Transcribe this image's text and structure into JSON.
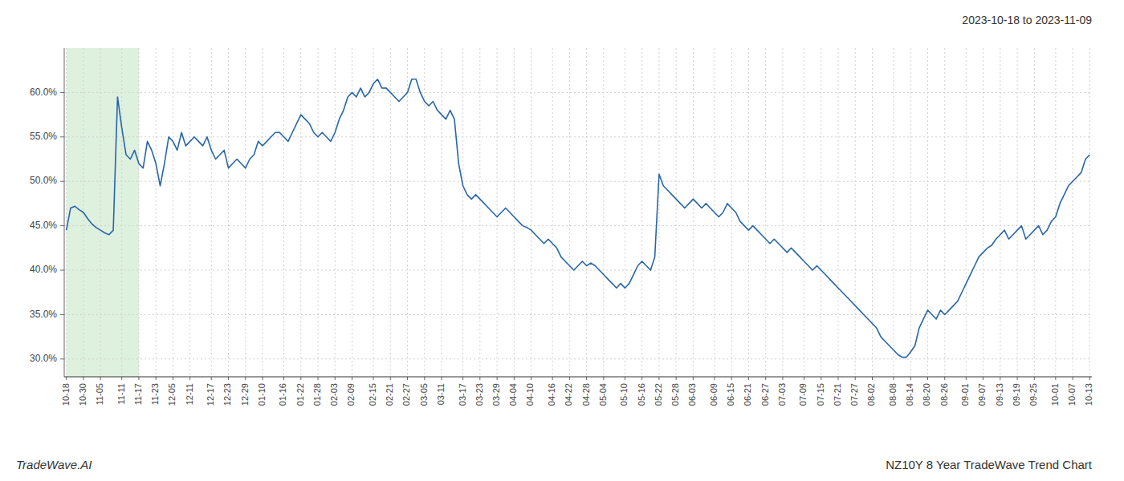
{
  "chart_data": {
    "type": "line",
    "title": "2023-10-18 to 2023-11-09",
    "subtitle": "NZ10Y 8 Year TradeWave Trend Chart",
    "annotations": [
      "TradeWave.AI"
    ],
    "color": "#2866a8",
    "grid": true,
    "highlight": {
      "from": "10-18",
      "to": "11-17",
      "color": "#c8e6c8"
    },
    "ylim": [
      28.0,
      65.0
    ],
    "yticks": [
      {
        "value": 30.0,
        "label": "30.0%"
      },
      {
        "value": 35.0,
        "label": "35.0%"
      },
      {
        "value": 40.0,
        "label": "40.0%"
      },
      {
        "value": 45.0,
        "label": "45.0%"
      },
      {
        "value": 50.0,
        "label": "50.0%"
      },
      {
        "value": 55.0,
        "label": "55.0%"
      },
      {
        "value": 60.0,
        "label": "60.0%"
      }
    ],
    "categories": [
      "10-18",
      null,
      null,
      null,
      "10-30",
      null,
      null,
      null,
      "11-05",
      null,
      null,
      null,
      null,
      "11-11",
      null,
      null,
      null,
      "11-17",
      null,
      null,
      null,
      "11-23",
      null,
      null,
      null,
      "12-05",
      null,
      null,
      null,
      "12-11",
      null,
      null,
      null,
      null,
      "12-17",
      null,
      null,
      null,
      "12-23",
      null,
      null,
      null,
      "12-29",
      null,
      null,
      null,
      "01-10",
      null,
      null,
      null,
      null,
      "01-16",
      null,
      null,
      null,
      "01-22",
      null,
      null,
      null,
      "01-28",
      null,
      null,
      null,
      "02-03",
      null,
      null,
      null,
      "02-09",
      null,
      null,
      null,
      null,
      "02-15",
      null,
      null,
      null,
      "02-21",
      null,
      null,
      null,
      "02-27",
      null,
      null,
      null,
      "03-05",
      null,
      null,
      null,
      "03-11",
      null,
      null,
      null,
      null,
      "03-17",
      null,
      null,
      null,
      "03-23",
      null,
      null,
      null,
      "03-29",
      null,
      null,
      null,
      "04-04",
      null,
      null,
      null,
      "04-10",
      null,
      null,
      null,
      null,
      "04-16",
      null,
      null,
      null,
      "04-22",
      null,
      null,
      null,
      "04-28",
      null,
      null,
      null,
      "05-04",
      null,
      null,
      null,
      null,
      "05-10",
      null,
      null,
      null,
      "05-16",
      null,
      null,
      null,
      "05-22",
      null,
      null,
      null,
      "05-28",
      null,
      null,
      null,
      "06-03",
      null,
      null,
      null,
      null,
      "06-09",
      null,
      null,
      null,
      "06-15",
      null,
      null,
      null,
      "06-21",
      null,
      null,
      null,
      "06-27",
      null,
      null,
      null,
      "07-03",
      null,
      null,
      null,
      null,
      "07-09",
      null,
      null,
      null,
      "07-15",
      null,
      null,
      null,
      "07-21",
      null,
      null,
      null,
      "07-27",
      null,
      null,
      null,
      "08-02",
      null,
      null,
      null,
      null,
      "08-08",
      null,
      null,
      null,
      "08-14",
      null,
      null,
      null,
      "08-20",
      null,
      null,
      null,
      "08-26",
      null,
      null,
      null,
      null,
      "09-01",
      null,
      null,
      null,
      "09-07",
      null,
      null,
      null,
      "09-13",
      null,
      null,
      null,
      "09-19",
      null,
      null,
      null,
      "09-25",
      null,
      null,
      null,
      null,
      "10-01",
      null,
      null,
      null,
      "10-07",
      null,
      null,
      null,
      "10-13"
    ],
    "values": [
      44.5,
      47.0,
      47.2,
      46.8,
      46.5,
      45.8,
      45.2,
      44.8,
      44.5,
      44.2,
      44.0,
      44.5,
      59.5,
      56.0,
      53.0,
      52.5,
      53.5,
      52.0,
      51.5,
      54.5,
      53.5,
      52.0,
      49.5,
      52.0,
      55.0,
      54.5,
      53.5,
      55.5,
      54.0,
      54.5,
      55.0,
      54.5,
      54.0,
      55.0,
      53.5,
      52.5,
      53.0,
      53.5,
      51.5,
      52.0,
      52.5,
      52.0,
      51.5,
      52.5,
      53.0,
      54.5,
      54.0,
      54.5,
      55.0,
      55.5,
      55.5,
      55.0,
      54.5,
      55.5,
      56.5,
      57.5,
      57.0,
      56.5,
      55.5,
      55.0,
      55.5,
      55.0,
      54.5,
      55.5,
      57.0,
      58.0,
      59.5,
      60.0,
      59.5,
      60.5,
      59.5,
      60.0,
      61.0,
      61.5,
      60.5,
      60.5,
      60.0,
      59.5,
      59.0,
      59.5,
      60.0,
      61.5,
      61.5,
      60.0,
      59.0,
      58.5,
      59.0,
      58.0,
      57.5,
      57.0,
      58.0,
      57.0,
      52.0,
      49.5,
      48.5,
      48.0,
      48.5,
      48.0,
      47.5,
      47.0,
      46.5,
      46.0,
      46.5,
      47.0,
      46.5,
      46.0,
      45.5,
      45.0,
      44.8,
      44.5,
      44.0,
      43.5,
      43.0,
      43.5,
      43.0,
      42.5,
      41.5,
      41.0,
      40.5,
      40.0,
      40.5,
      41.0,
      40.5,
      40.8,
      40.5,
      40.0,
      39.5,
      39.0,
      38.5,
      38.0,
      38.5,
      38.0,
      38.5,
      39.5,
      40.5,
      41.0,
      40.5,
      40.0,
      41.5,
      50.8,
      49.5,
      49.0,
      48.5,
      48.0,
      47.5,
      47.0,
      47.5,
      48.0,
      47.5,
      47.0,
      47.5,
      47.0,
      46.5,
      46.0,
      46.5,
      47.5,
      47.0,
      46.5,
      45.5,
      45.0,
      44.5,
      45.0,
      44.5,
      44.0,
      43.5,
      43.0,
      43.5,
      43.0,
      42.5,
      42.0,
      42.5,
      42.0,
      41.5,
      41.0,
      40.5,
      40.0,
      40.5,
      40.0,
      39.5,
      39.0,
      38.5,
      38.0,
      37.5,
      37.0,
      36.5,
      36.0,
      35.5,
      35.0,
      34.5,
      34.0,
      33.5,
      32.5,
      32.0,
      31.5,
      31.0,
      30.5,
      30.2,
      30.2,
      30.8,
      31.5,
      33.5,
      34.5,
      35.5,
      35.0,
      34.5,
      35.5,
      35.0,
      35.5,
      36.0,
      36.5,
      37.5,
      38.5,
      39.5,
      40.5,
      41.5,
      42.0,
      42.5,
      42.8,
      43.5,
      44.0,
      44.5,
      43.5,
      44.0,
      44.5,
      45.0,
      43.5,
      44.0,
      44.5,
      45.0,
      44.0,
      44.5,
      45.5,
      46.0,
      47.5,
      48.5,
      49.5,
      50.0,
      50.5,
      51.0,
      52.5,
      53.0
    ]
  }
}
